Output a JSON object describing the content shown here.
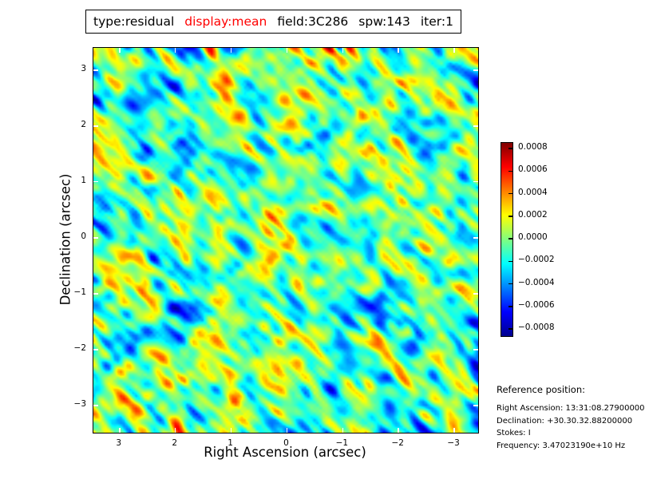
{
  "title": {
    "parts": [
      {
        "text": "type:residual",
        "color": "#000000"
      },
      {
        "text": "display:mean",
        "color": "#ff0000"
      },
      {
        "text": "field:3C286",
        "color": "#000000"
      },
      {
        "text": "spw:143",
        "color": "#000000"
      },
      {
        "text": "iter:1",
        "color": "#000000"
      }
    ]
  },
  "chart_data": {
    "type": "heatmap",
    "title": "type:residual display:mean field:3C286 spw:143 iter:1",
    "xlabel": "Right Ascension (arcsec)",
    "ylabel": "Declination (arcsec)",
    "x_ticks": [
      3,
      2,
      1,
      0,
      -1,
      -2,
      -3
    ],
    "y_ticks": [
      3,
      2,
      1,
      0,
      -1,
      -2,
      -3
    ],
    "x_tick_labels": [
      "3",
      "2",
      "1",
      "0",
      "−1",
      "−2",
      "−3"
    ],
    "y_tick_labels": [
      "3",
      "2",
      "1",
      "0",
      "−1",
      "−2",
      "−3"
    ],
    "xlim": [
      3.45,
      -3.45
    ],
    "x_axis_inverted": true,
    "ylim": [
      -3.45,
      3.45
    ],
    "grid": false,
    "colormap": "jet",
    "value_min": -0.0008,
    "value_max": 0.0008,
    "colorbar_position": "right",
    "colorbar_tick_values": [
      0.0008,
      0.0006,
      0.0004,
      0.0002,
      0.0,
      -0.0002,
      -0.0004,
      -0.0006,
      -0.0008
    ],
    "colorbar_tick_labels": [
      "0.0008",
      "0.0006",
      "0.0004",
      "0.0002",
      "0.0000",
      "−0.0002",
      "−0.0004",
      "−0.0006",
      "−0.0008"
    ],
    "content_description": "Interferometric residual noise map: green/cyan background near zero with orange-red positive and blue negative blobs, elongated streaks along the NW-SE diagonal"
  },
  "reference": {
    "heading": "Reference position:",
    "lines": [
      "Right Ascension: 13:31:08.27900000",
      "Declination: +30.30.32.88200000",
      "Stokes: I",
      "Frequency: 3.47023190e+10 Hz"
    ]
  },
  "colors": {
    "background": "#ffffff",
    "frame": "#000000",
    "title_highlight": "#ff0000",
    "tick_mark_on_image": "#ffffff",
    "jet_stops": [
      "#00008f",
      "#0000ff",
      "#00ffff",
      "#ffff00",
      "#ff0000",
      "#800000"
    ]
  }
}
